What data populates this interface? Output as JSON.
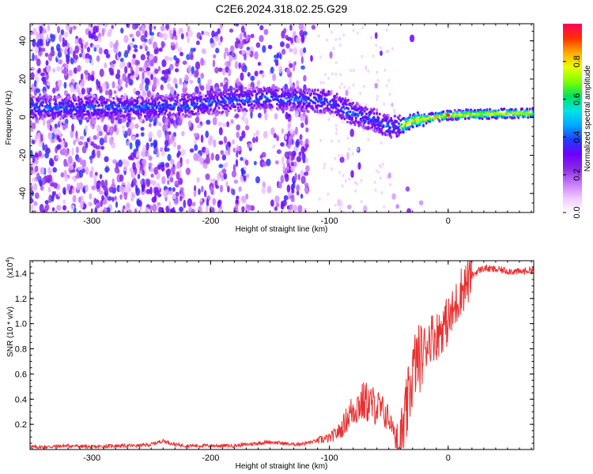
{
  "title": "C2E6.2024.318.02.25.G29",
  "spectrogram": {
    "xlabel": "Height of straight line (km)",
    "ylabel": "Frequency (Hz)",
    "xlim": [
      -352,
      72
    ],
    "ylim": [
      -50,
      49
    ],
    "xticks": [
      "-300",
      "-200",
      "-100",
      "0"
    ],
    "yticks": [
      "-40",
      "-20",
      "0",
      "20",
      "40"
    ],
    "colorbar": {
      "label": "Normalized spectral amplitude",
      "range": [
        0,
        1
      ],
      "ticks": [
        "0.0",
        "0.2",
        "0.4",
        "0.6",
        "0.8"
      ],
      "colormap": [
        "#ffffff",
        "#f0c8ff",
        "#c878ff",
        "#8a2be2",
        "#6f00ff",
        "#1f3cff",
        "#00a8ff",
        "#00e5e5",
        "#00e060",
        "#7fff00",
        "#e8ff00",
        "#ffaa00",
        "#ff3000",
        "#ff0060"
      ]
    },
    "ridge": [
      {
        "x": -340,
        "f": 5
      },
      {
        "x": -300,
        "f": 5
      },
      {
        "x": -260,
        "f": 5
      },
      {
        "x": -220,
        "f": 6
      },
      {
        "x": -180,
        "f": 9
      },
      {
        "x": -150,
        "f": 10
      },
      {
        "x": -120,
        "f": 9
      },
      {
        "x": -100,
        "f": 8
      },
      {
        "x": -90,
        "f": 5
      },
      {
        "x": -80,
        "f": 2
      },
      {
        "x": -70,
        "f": 0
      },
      {
        "x": -60,
        "f": -2
      },
      {
        "x": -50,
        "f": -5
      },
      {
        "x": -40,
        "f": -5
      },
      {
        "x": -30,
        "f": -2
      },
      {
        "x": -20,
        "f": -1
      },
      {
        "x": -10,
        "f": 0
      },
      {
        "x": 0,
        "f": 1
      },
      {
        "x": 20,
        "f": 1.5
      },
      {
        "x": 40,
        "f": 1.8
      },
      {
        "x": 72,
        "f": 2
      }
    ]
  },
  "chart_data": {
    "type": "line",
    "title": "C2E6.2024.318.02.25.G29",
    "xlabel": "Height of straight line (km)",
    "ylabel": "SNR (10 * v/v)",
    "yscale_label": "(x10",
    "yscale_exp": "4",
    "ylabel_close": ")",
    "xlim": [
      -352,
      72
    ],
    "ylim": [
      0,
      1.5
    ],
    "xticks": [
      "-300",
      "-200",
      "-100",
      "0"
    ],
    "yticks": [
      "0.2",
      "0.4",
      "0.6",
      "0.8",
      "1.0",
      "1.2",
      "1.4"
    ],
    "color": "#e83030",
    "series": [
      {
        "x": [
          -352,
          -340,
          -320,
          -300,
          -280,
          -260,
          -250,
          -240,
          -230,
          -220,
          -200,
          -180,
          -170,
          -160,
          -150,
          -140,
          -130,
          -120,
          -110,
          -100,
          -95,
          -90,
          -85,
          -80,
          -75,
          -70,
          -65,
          -60,
          -55,
          -50,
          -45,
          -42,
          -40,
          -38,
          -35,
          -30,
          -28,
          -25,
          -22,
          -20,
          -15,
          -10,
          -5,
          0,
          5,
          10,
          15,
          20,
          25,
          30,
          40,
          50,
          60,
          72
        ],
        "y": [
          0.02,
          0.02,
          0.03,
          0.02,
          0.03,
          0.03,
          0.04,
          0.07,
          0.04,
          0.03,
          0.03,
          0.03,
          0.04,
          0.05,
          0.06,
          0.05,
          0.04,
          0.05,
          0.07,
          0.09,
          0.12,
          0.16,
          0.25,
          0.32,
          0.36,
          0.38,
          0.36,
          0.34,
          0.3,
          0.25,
          0.12,
          0.1,
          0.07,
          0.12,
          0.3,
          0.6,
          0.68,
          0.72,
          0.75,
          0.8,
          0.9,
          0.9,
          0.97,
          1.02,
          1.1,
          1.25,
          1.32,
          1.38,
          1.42,
          1.44,
          1.43,
          1.42,
          1.41,
          1.43
        ]
      }
    ]
  }
}
